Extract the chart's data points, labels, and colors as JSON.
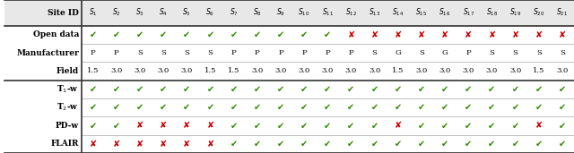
{
  "sites": [
    "S_1",
    "S_2",
    "S_3",
    "S_4",
    "S_5",
    "S_6",
    "S_7",
    "S_8",
    "S_9",
    "S_10",
    "S_11",
    "S_12",
    "S_13",
    "S_14",
    "S_15",
    "S_16",
    "S_17",
    "S_18",
    "S_19",
    "S_20",
    "S_21"
  ],
  "open_data": [
    1,
    1,
    1,
    1,
    1,
    1,
    1,
    1,
    1,
    1,
    1,
    0,
    0,
    0,
    0,
    0,
    0,
    0,
    0,
    0,
    0
  ],
  "manufacturer": [
    "P",
    "P",
    "S",
    "S",
    "S",
    "S",
    "P",
    "P",
    "P",
    "P",
    "P",
    "P",
    "S",
    "G",
    "S",
    "G",
    "P",
    "S",
    "S",
    "S",
    "S"
  ],
  "field": [
    "1.5",
    "3.0",
    "3.0",
    "3.0",
    "3.0",
    "1.5",
    "1.5",
    "3.0",
    "3.0",
    "3.0",
    "3.0",
    "3.0",
    "3.0",
    "1.5",
    "3.0",
    "3.0",
    "3.0",
    "3.0",
    "3.0",
    "1.5",
    "3.0"
  ],
  "T1w": [
    1,
    1,
    1,
    1,
    1,
    1,
    1,
    1,
    1,
    1,
    1,
    1,
    1,
    1,
    1,
    1,
    1,
    1,
    1,
    1,
    1
  ],
  "T2w": [
    1,
    1,
    1,
    1,
    1,
    1,
    1,
    1,
    1,
    1,
    1,
    1,
    1,
    1,
    1,
    1,
    1,
    1,
    1,
    1,
    1
  ],
  "PDw": [
    1,
    1,
    0,
    0,
    0,
    0,
    1,
    1,
    1,
    1,
    1,
    1,
    1,
    0,
    1,
    1,
    1,
    1,
    1,
    0,
    1
  ],
  "FLAIR": [
    0,
    0,
    0,
    0,
    0,
    0,
    1,
    1,
    1,
    1,
    1,
    1,
    1,
    1,
    1,
    1,
    1,
    1,
    1,
    1,
    1
  ],
  "check_color": "#2e8b00",
  "cross_color": "#cc0000",
  "fig_bg": "#ffffff"
}
